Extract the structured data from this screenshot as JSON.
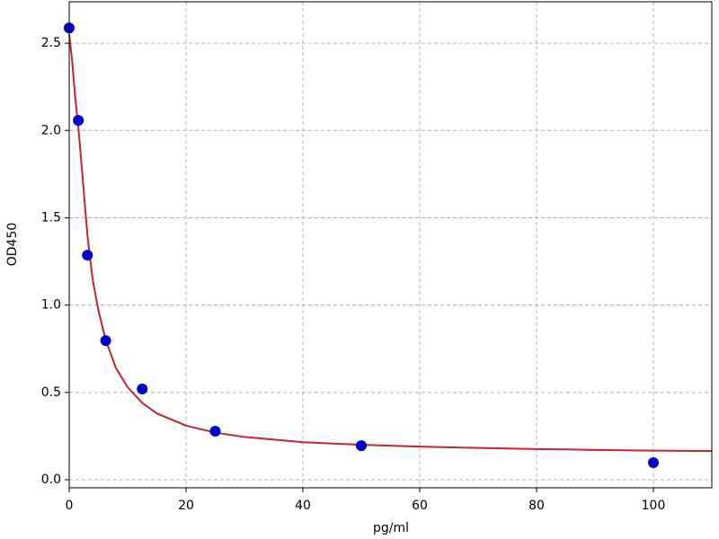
{
  "chart_data": {
    "type": "scatter",
    "xlabel": "pg/ml",
    "ylabel": "OD450",
    "xlim": [
      0,
      110
    ],
    "ylim": [
      -0.046,
      2.737
    ],
    "xticks": [
      0,
      20,
      40,
      60,
      80,
      100
    ],
    "yticks": [
      {
        "value": 0,
        "label": "0.0"
      },
      0.5,
      {
        "value": 1,
        "label": "1.0"
      },
      1.5,
      {
        "value": 2,
        "label": "2.0"
      },
      2.5
    ],
    "grid": true,
    "series": [
      {
        "type": "scatter",
        "color": "#0000cc",
        "x": [
          0,
          1.5625,
          3.125,
          6.25,
          12.5,
          25,
          50,
          100
        ],
        "values": [
          2.587,
          2.058,
          1.286,
          0.797,
          0.52,
          0.278,
          0.195,
          0.098
        ]
      },
      {
        "type": "line",
        "color": "#c0262d",
        "x": [
          0,
          0.5,
          1,
          1.5625,
          2,
          3.125,
          4,
          5,
          6.25,
          8,
          10,
          12.5,
          15,
          20,
          25,
          30,
          40,
          50,
          60,
          70,
          80,
          90,
          100,
          110
        ],
        "values": [
          2.55,
          2.4,
          2.2,
          2.02,
          1.85,
          1.4,
          1.15,
          0.97,
          0.8,
          0.64,
          0.53,
          0.44,
          0.38,
          0.31,
          0.27,
          0.245,
          0.215,
          0.2,
          0.19,
          0.182,
          0.176,
          0.171,
          0.167,
          0.164
        ]
      }
    ]
  }
}
